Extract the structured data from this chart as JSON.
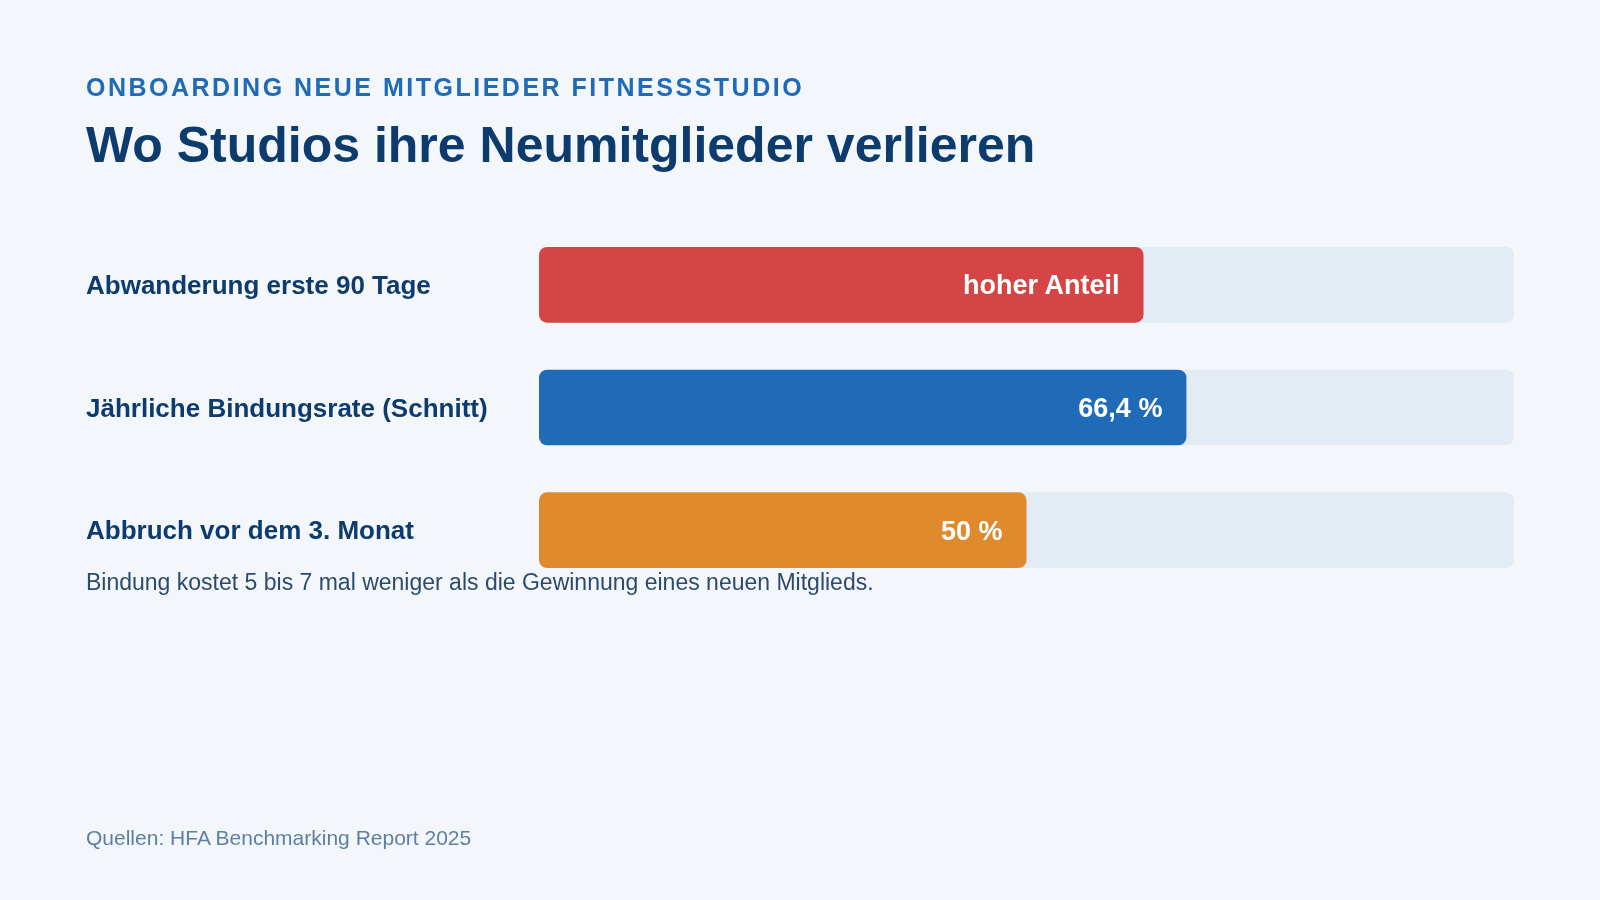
{
  "chart_data": {
    "type": "bar",
    "orientation": "horizontal",
    "subtitle": "ONBOARDING NEUE MITGLIEDER FITNESSSTUDIO",
    "title": "Wo Studios ihre Neumitglieder verlieren",
    "categories": [
      "Abwanderung erste 90 Tage",
      "Jährliche Bindungsrate (Schnitt)",
      "Abbruch vor dem 3. Monat"
    ],
    "values": [
      62,
      66.4,
      50
    ],
    "colors": [
      "#d64545",
      "#1f6bb8",
      "#e08a2e"
    ],
    "value_labels": [
      "hoher Anteil",
      "66,4 %",
      "50 %"
    ],
    "xlim": [
      0,
      100
    ],
    "annotations": [
      "Bindung kostet 5 bis 7 mal weniger als die Gewinnung eines neuen Mitglieds.",
      "Quellen: HFA Benchmarking Report 2025"
    ]
  }
}
